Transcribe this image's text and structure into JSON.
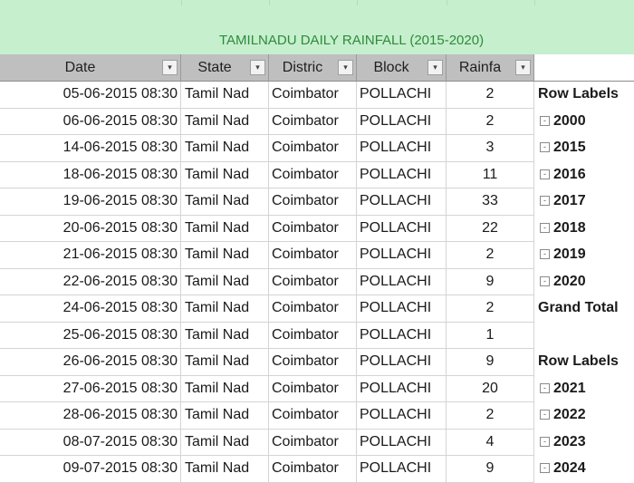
{
  "sheet": {
    "title": "TAMILNADU DAILY RAINFALL (2015-2020)",
    "headers": [
      "Date",
      "State",
      "Distric",
      "Block",
      "Rainfa"
    ],
    "filter_icon": "dropdown-arrow-icon",
    "rows": [
      {
        "date": "05-06-2015 08:30",
        "state": "Tamil Nad",
        "district": "Coimbator",
        "block": "POLLACHI",
        "rain": "2"
      },
      {
        "date": "06-06-2015 08:30",
        "state": "Tamil Nad",
        "district": "Coimbator",
        "block": "POLLACHI",
        "rain": "2"
      },
      {
        "date": "14-06-2015 08:30",
        "state": "Tamil Nad",
        "district": "Coimbator",
        "block": "POLLACHI",
        "rain": "3"
      },
      {
        "date": "18-06-2015 08:30",
        "state": "Tamil Nad",
        "district": "Coimbator",
        "block": "POLLACHI",
        "rain": "11"
      },
      {
        "date": "19-06-2015 08:30",
        "state": "Tamil Nad",
        "district": "Coimbator",
        "block": "POLLACHI",
        "rain": "33"
      },
      {
        "date": "20-06-2015 08:30",
        "state": "Tamil Nad",
        "district": "Coimbator",
        "block": "POLLACHI",
        "rain": "22"
      },
      {
        "date": "21-06-2015 08:30",
        "state": "Tamil Nad",
        "district": "Coimbator",
        "block": "POLLACHI",
        "rain": "2"
      },
      {
        "date": "22-06-2015 08:30",
        "state": "Tamil Nad",
        "district": "Coimbator",
        "block": "POLLACHI",
        "rain": "9"
      },
      {
        "date": "24-06-2015 08:30",
        "state": "Tamil Nad",
        "district": "Coimbator",
        "block": "POLLACHI",
        "rain": "2"
      },
      {
        "date": "25-06-2015 08:30",
        "state": "Tamil Nad",
        "district": "Coimbator",
        "block": "POLLACHI",
        "rain": "1"
      },
      {
        "date": "26-06-2015 08:30",
        "state": "Tamil Nad",
        "district": "Coimbator",
        "block": "POLLACHI",
        "rain": "9"
      },
      {
        "date": "27-06-2015 08:30",
        "state": "Tamil Nad",
        "district": "Coimbator",
        "block": "POLLACHI",
        "rain": "20"
      },
      {
        "date": "28-06-2015 08:30",
        "state": "Tamil Nad",
        "district": "Coimbator",
        "block": "POLLACHI",
        "rain": "2"
      },
      {
        "date": "08-07-2015 08:30",
        "state": "Tamil Nad",
        "district": "Coimbator",
        "block": "POLLACHI",
        "rain": "4"
      },
      {
        "date": "09-07-2015 08:30",
        "state": "Tamil Nad",
        "district": "Coimbator",
        "block": "POLLACHI",
        "rain": "9"
      }
    ]
  },
  "pivot": {
    "cells": [
      {
        "type": "label",
        "text": "Row Labels"
      },
      {
        "type": "item",
        "text": "2000"
      },
      {
        "type": "item",
        "text": "2015"
      },
      {
        "type": "item",
        "text": "2016"
      },
      {
        "type": "item",
        "text": "2017"
      },
      {
        "type": "item",
        "text": "2018"
      },
      {
        "type": "item",
        "text": "2019"
      },
      {
        "type": "item",
        "text": "2020"
      },
      {
        "type": "label",
        "text": "Grand Total"
      },
      {
        "type": "empty",
        "text": ""
      },
      {
        "type": "label",
        "text": "Row Labels"
      },
      {
        "type": "item",
        "text": "2021"
      },
      {
        "type": "item",
        "text": "2022"
      },
      {
        "type": "item",
        "text": "2023"
      },
      {
        "type": "item",
        "text": "2024"
      }
    ],
    "expand_icon": "collapse-minus-icon",
    "expand_glyph": "-"
  },
  "colors": {
    "title_band": "#c6efce",
    "title_text": "#2e8b3a",
    "header_bg": "#bfbfbf"
  }
}
